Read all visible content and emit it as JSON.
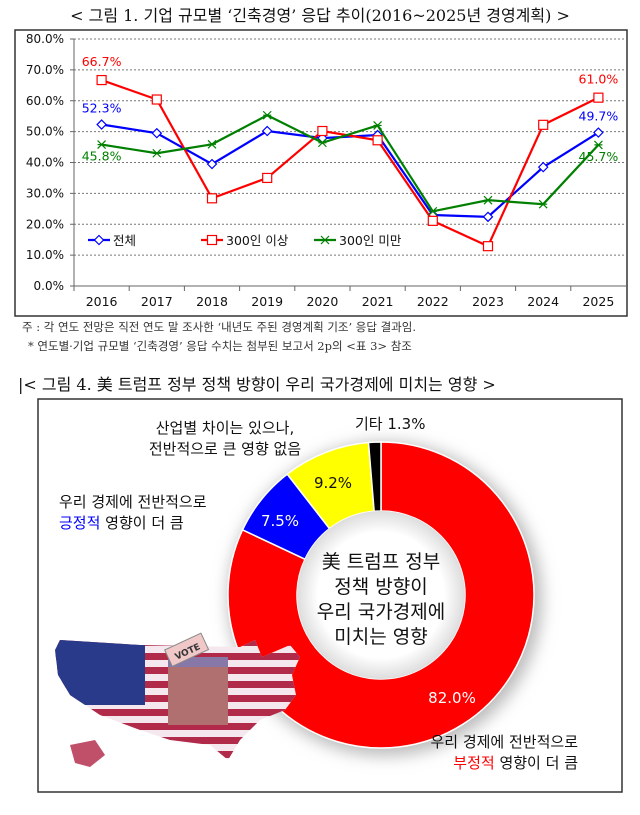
{
  "figure1": {
    "title": "< 그림 1. 기업 규모별 ‘긴축경영’ 응답 추이(2016~2025년 경영계획) >",
    "notes": [
      "주 : 각 연도 전망은 직전 연도 말 조사한 ‘내년도 주된 경영계획 기조’ 응답 결과임.",
      "* 연도별·기업 규모별 ‘긴축경영’ 응답 수치는 첨부된 보고서 2p의 <표 3> 참조"
    ]
  },
  "figure2": {
    "title": "|< 그림 4. 美 트럼프 정부 정책 방향이 우리 국가경제에 미치는 영향 >"
  },
  "chart_data": [
    {
      "type": "line",
      "categories": [
        "2016",
        "2017",
        "2018",
        "2019",
        "2020",
        "2021",
        "2022",
        "2023",
        "2024",
        "2025"
      ],
      "ylim": [
        0,
        80
      ],
      "yticks": [
        "0.0%",
        "10.0%",
        "20.0%",
        "30.0%",
        "40.0%",
        "50.0%",
        "60.0%",
        "70.0%",
        "80.0%"
      ],
      "grid": true,
      "legend": "bottom-left",
      "series": [
        {
          "name": "전체",
          "color": "#0000ff",
          "marker": "diamond",
          "values": [
            52.3,
            49.5,
            39.5,
            50.2,
            47.9,
            48.9,
            23.0,
            22.4,
            38.5,
            49.7
          ],
          "labels": {
            "0": "52.3%",
            "9": "49.7%"
          }
        },
        {
          "name": "300인 이상",
          "color": "#ff0000",
          "marker": "square",
          "values": [
            66.7,
            60.4,
            28.4,
            35.0,
            50.2,
            47.2,
            21.1,
            12.9,
            52.2,
            61.0
          ],
          "labels": {
            "0": "66.7%",
            "9": "61.0%"
          }
        },
        {
          "name": "300인 미만",
          "color": "#008000",
          "marker": "asterisk",
          "values": [
            45.8,
            43.0,
            45.9,
            55.3,
            46.4,
            52.0,
            24.2,
            27.8,
            26.5,
            45.7
          ],
          "labels": {
            "0": "45.8%",
            "9": "45.7%"
          }
        }
      ]
    },
    {
      "type": "pie",
      "donut": true,
      "center_label": [
        "美 트럼프 정부",
        "정책 방향이",
        "우리 국가경제에",
        "미치는 영향"
      ],
      "slices": [
        {
          "label_lines": [
            "우리 경제에 전반적으로",
            "부정적 영향이 더 큼"
          ],
          "highlight": "부정적",
          "value": 82.0,
          "value_label": "82.0%",
          "color": "#ff0000"
        },
        {
          "label_lines": [
            "우리 경제에 전반적으로",
            "긍정적 영향이 더 큼"
          ],
          "highlight": "긍정적",
          "value": 7.5,
          "value_label": "7.5%",
          "color": "#0000ff"
        },
        {
          "label_lines": [
            "산업별 차이는 있으나,",
            "전반적으로 큰 영향 없음"
          ],
          "value": 9.2,
          "value_label": "9.2%",
          "color": "#ffff00"
        },
        {
          "label_lines": [
            "기타 1.3%"
          ],
          "value": 1.3,
          "value_label": "",
          "color": "#000000"
        }
      ],
      "image": "us-map-flag-vote-box"
    }
  ]
}
